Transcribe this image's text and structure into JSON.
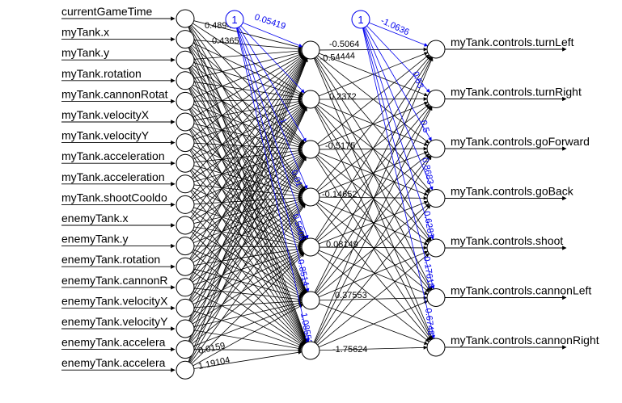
{
  "network": {
    "inputs": [
      "currentGameTime",
      "myTank.x",
      "myTank.y",
      "myTank.rotation",
      "myTank.cannonRotat",
      "myTank.velocityX",
      "myTank.velocityY",
      "myTank.acceleration",
      "myTank.acceleration",
      "myTank.shootCooldo",
      "enemyTank.x",
      "enemyTank.y",
      "enemyTank.rotation",
      "enemyTank.cannonR",
      "enemyTank.velocityX",
      "enemyTank.velocityY",
      "enemyTank.accelera",
      "enemyTank.accelera"
    ],
    "outputs": [
      "myTank.controls.turnLeft",
      "myTank.controls.turnRight",
      "myTank.controls.goForward",
      "myTank.controls.goBack",
      "myTank.controls.shoot",
      "myTank.controls.cannonLeft",
      "myTank.controls.cannonRight"
    ],
    "bias_label": "1",
    "colors": {
      "edge": "#000000",
      "bias_edge": "#0000ee",
      "node_fill": "#ffffff"
    },
    "input_hidden_labels": [
      "0.48944",
      "0.4365",
      "1.19104",
      "0.0159"
    ],
    "bias1_labels": [
      "0.05419",
      "1",
      "0.01",
      "0.5608",
      "0.8514",
      "1.08552"
    ],
    "hidden_output_labels": [
      "-0.5064",
      "-0.54444",
      "0.2372",
      "-0.5175",
      "-0.14652",
      "0.08149",
      "0.37553",
      "-1.75624"
    ],
    "bias2_labels": [
      "-1.0636",
      "0.53",
      "0.5",
      "0.8683",
      "0.6281",
      "0.17615",
      "0.6748"
    ]
  }
}
